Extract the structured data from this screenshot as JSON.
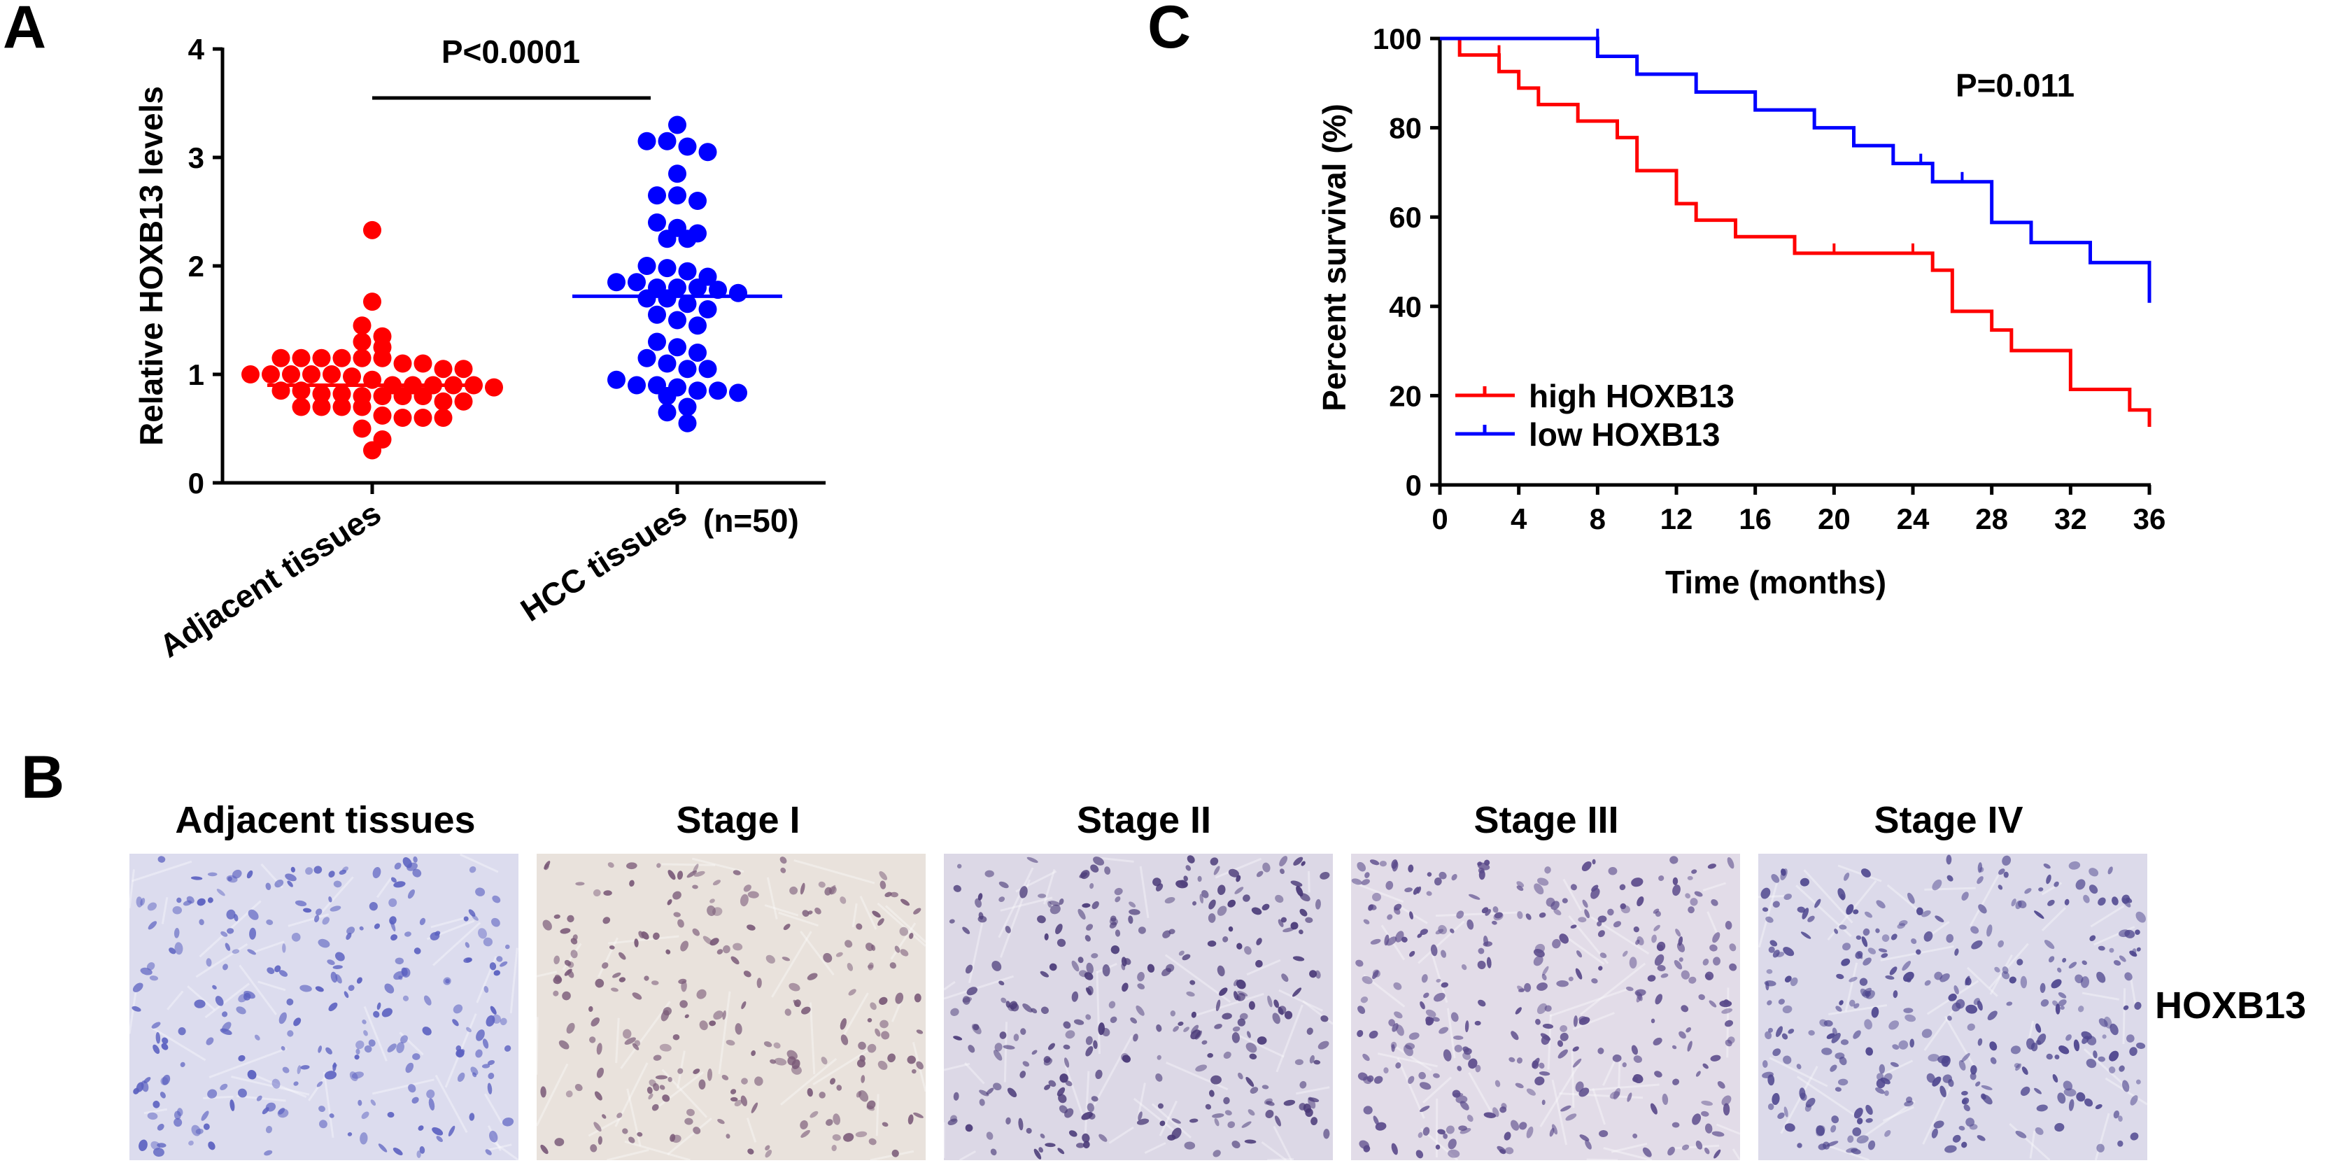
{
  "panels": {
    "a": "A",
    "b": "B",
    "c": "C"
  },
  "chart_data": [
    {
      "type": "scatter",
      "panel": "A",
      "ylabel": "Relative HOXB13 levels",
      "xlabel": "",
      "categories": [
        "Adjacent tissues",
        "HCC tissues"
      ],
      "sample_note": "(n=50)",
      "annotation": "P<0.0001",
      "ylim": [
        0,
        4
      ],
      "yticks": [
        "0",
        "1",
        "2",
        "3",
        "4"
      ],
      "series": [
        {
          "name": "Adjacent tissues",
          "color": "#ff0000",
          "mean": 0.9,
          "values": [
            2.33,
            1.67,
            1.45,
            1.35,
            1.3,
            1.25,
            1.15,
            1.15,
            1.15,
            1.15,
            1.15,
            1.15,
            1.1,
            1.1,
            1.05,
            1.05,
            1.0,
            1.0,
            1.0,
            1.0,
            1.0,
            0.98,
            0.95,
            0.9,
            0.9,
            0.9,
            0.9,
            0.9,
            0.88,
            0.85,
            0.85,
            0.82,
            0.82,
            0.8,
            0.8,
            0.8,
            0.8,
            0.75,
            0.75,
            0.7,
            0.7,
            0.7,
            0.7,
            0.62,
            0.6,
            0.6,
            0.6,
            0.5,
            0.4,
            0.3
          ]
        },
        {
          "name": "HCC tissues",
          "color": "#0000ff",
          "mean": 1.72,
          "values": [
            3.3,
            3.15,
            3.15,
            3.1,
            3.05,
            2.85,
            2.65,
            2.65,
            2.6,
            2.4,
            2.35,
            2.3,
            2.25,
            2.25,
            2.0,
            1.98,
            1.95,
            1.9,
            1.85,
            1.85,
            1.8,
            1.8,
            1.8,
            1.78,
            1.75,
            1.7,
            1.7,
            1.65,
            1.6,
            1.55,
            1.5,
            1.45,
            1.3,
            1.25,
            1.2,
            1.15,
            1.1,
            1.05,
            1.05,
            0.95,
            0.9,
            0.9,
            0.88,
            0.85,
            0.85,
            0.83,
            0.8,
            0.7,
            0.65,
            0.55
          ]
        }
      ]
    },
    {
      "type": "line",
      "panel": "C",
      "step": true,
      "xlabel": "Time (months)",
      "ylabel": "Percent survival (%)",
      "annotation": "P=0.011",
      "xlim": [
        0,
        36
      ],
      "ylim": [
        0,
        100
      ],
      "xticks": [
        "0",
        "4",
        "8",
        "12",
        "16",
        "20",
        "24",
        "28",
        "32",
        "36"
      ],
      "yticks": [
        "0",
        "20",
        "40",
        "60",
        "80",
        "100"
      ],
      "legend_position": "bottom-left",
      "series": [
        {
          "name": "high HOXB13",
          "color": "#ff0000",
          "points": [
            [
              0,
              100
            ],
            [
              1,
              96.3
            ],
            [
              3,
              92.6
            ],
            [
              4,
              88.9
            ],
            [
              5,
              85.2
            ],
            [
              7,
              81.5
            ],
            [
              9,
              77.8
            ],
            [
              10,
              70.4
            ],
            [
              12,
              63.0
            ],
            [
              13,
              59.3
            ],
            [
              15,
              55.6
            ],
            [
              18,
              51.9
            ],
            [
              25,
              48.1
            ],
            [
              26,
              38.9
            ],
            [
              28,
              34.7
            ],
            [
              29,
              30.1
            ],
            [
              32,
              21.4
            ],
            [
              35,
              16.8
            ],
            [
              36,
              13.0
            ]
          ],
          "censored": [
            [
              20,
              51.9
            ],
            [
              24,
              51.9
            ],
            [
              3,
              96.3
            ]
          ]
        },
        {
          "name": "low HOXB13",
          "color": "#0000ff",
          "points": [
            [
              0,
              100
            ],
            [
              8,
              96.0
            ],
            [
              10,
              92.0
            ],
            [
              13,
              88.0
            ],
            [
              16,
              84.0
            ],
            [
              19,
              80.0
            ],
            [
              21,
              76.0
            ],
            [
              23,
              72.0
            ],
            [
              25,
              67.9
            ],
            [
              28,
              58.8
            ],
            [
              30,
              54.3
            ],
            [
              33,
              49.8
            ],
            [
              36,
              40.8
            ]
          ],
          "censored": [
            [
              24.4,
              72.0
            ],
            [
              26.5,
              67.9
            ],
            [
              8,
              100
            ]
          ]
        }
      ]
    }
  ],
  "ihc": {
    "row_label": "HOXB13",
    "images": [
      {
        "label": "Adjacent tissues",
        "bg": "#dcdcee",
        "nucleus": "#5a60c0",
        "density": 260
      },
      {
        "label": "Stage I",
        "bg": "#e9e2dc",
        "nucleus": "#7a5a78",
        "density": 240
      },
      {
        "label": "Stage II",
        "bg": "#dcd8e6",
        "nucleus": "#4a3a78",
        "density": 300
      },
      {
        "label": "Stage III",
        "bg": "#e2dce8",
        "nucleus": "#5a4a8a",
        "density": 330
      },
      {
        "label": "Stage IV",
        "bg": "#dcdaea",
        "nucleus": "#4e468e",
        "density": 330
      }
    ]
  }
}
